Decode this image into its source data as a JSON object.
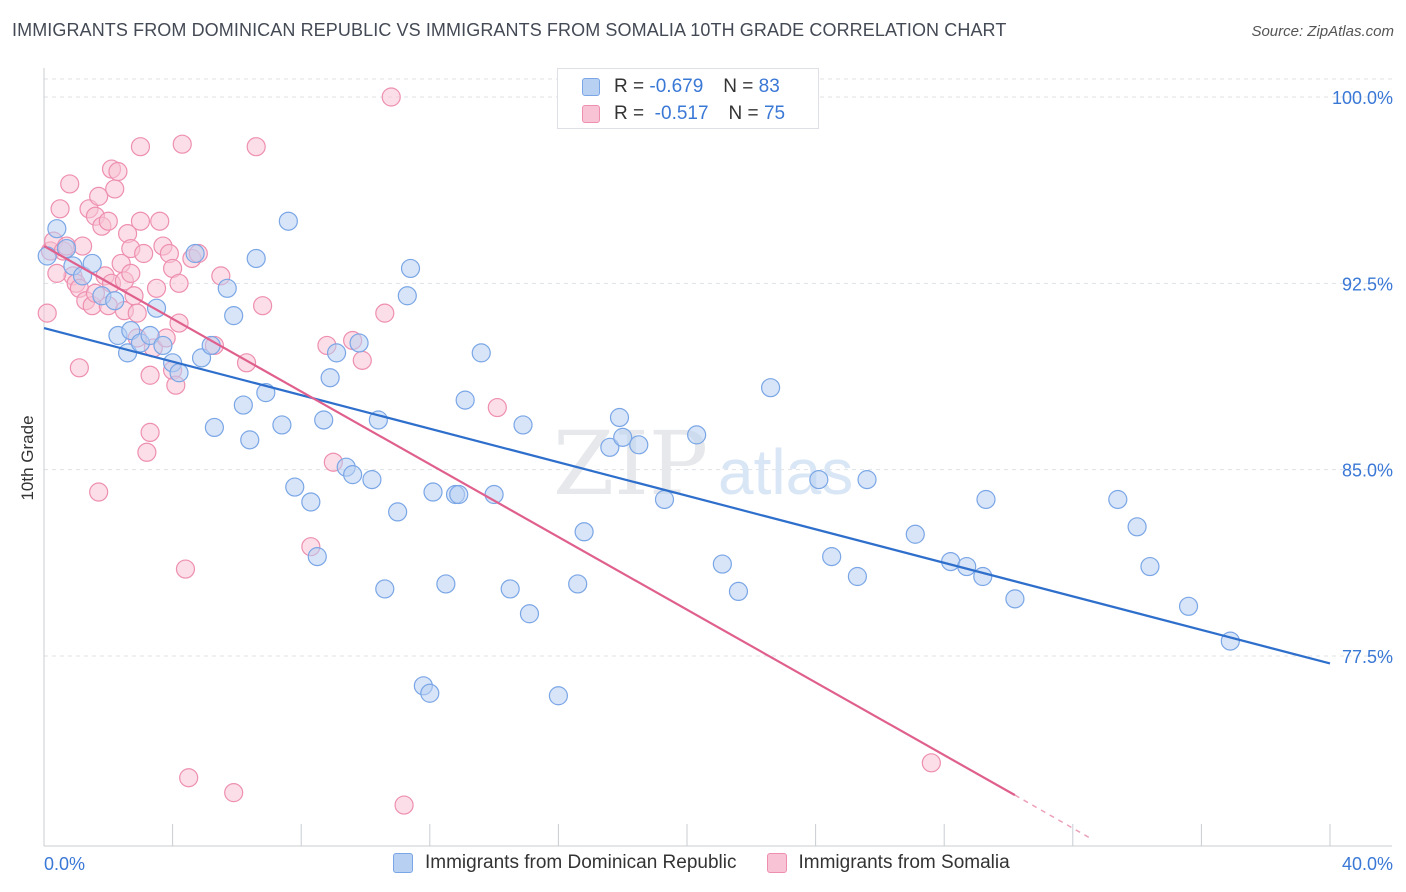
{
  "header": {
    "title": "IMMIGRANTS FROM DOMINICAN REPUBLIC VS IMMIGRANTS FROM SOMALIA 10TH GRADE CORRELATION CHART",
    "source": "Source: ZipAtlas.com"
  },
  "stats": [
    {
      "r_label": "R =",
      "r_value": "-0.679",
      "n_label": "N =",
      "n_value": "83"
    },
    {
      "r_label": "R =",
      "r_value": "-0.517",
      "n_label": "N =",
      "n_value": "75"
    }
  ],
  "watermark": {
    "zip": "ZIP",
    "atlas": "atlas"
  },
  "colors": {
    "blue_fill": "#b8d0f2",
    "blue_stroke": "#7aa6e6",
    "blue_line": "#2f6fcc",
    "pink_fill": "#f8c3d4",
    "pink_stroke": "#ee8fb0",
    "pink_line": "#e0608d",
    "axis_text": "#3a78d6",
    "grid": "#dde1e6"
  },
  "chart_data": {
    "type": "scatter",
    "xlabel": "",
    "ylabel": "10th Grade",
    "xlim": [
      0,
      40
    ],
    "ylim": [
      70.5,
      101
    ],
    "x_tick_labels": [
      "0.0%",
      "40.0%"
    ],
    "y_ticks": [
      77.5,
      85.0,
      92.5,
      100.0
    ],
    "y_tick_labels": [
      "77.5%",
      "85.0%",
      "92.5%",
      "100.0%"
    ],
    "grid": "horizontal dashed",
    "legend_position": "top-center and bottom",
    "series": [
      {
        "name": "Immigrants from Dominican Republic",
        "color": "#7aa6e6",
        "trend": {
          "x": [
            0,
            40
          ],
          "y": [
            90.7,
            77.2
          ]
        },
        "points": [
          [
            0.1,
            93.6
          ],
          [
            0.4,
            94.7
          ],
          [
            0.7,
            93.9
          ],
          [
            0.9,
            93.2
          ],
          [
            1.2,
            92.8
          ],
          [
            1.5,
            93.3
          ],
          [
            1.8,
            92.0
          ],
          [
            2.2,
            91.8
          ],
          [
            2.3,
            90.4
          ],
          [
            2.6,
            89.7
          ],
          [
            2.7,
            90.6
          ],
          [
            3.0,
            90.1
          ],
          [
            3.3,
            90.4
          ],
          [
            3.5,
            91.5
          ],
          [
            3.7,
            90.0
          ],
          [
            4.0,
            89.3
          ],
          [
            4.2,
            88.9
          ],
          [
            4.7,
            93.7
          ],
          [
            4.9,
            89.5
          ],
          [
            5.2,
            90.0
          ],
          [
            5.3,
            86.7
          ],
          [
            5.7,
            92.3
          ],
          [
            5.9,
            91.2
          ],
          [
            6.2,
            87.6
          ],
          [
            6.4,
            86.2
          ],
          [
            6.6,
            93.5
          ],
          [
            6.9,
            88.1
          ],
          [
            7.4,
            86.8
          ],
          [
            7.6,
            95.0
          ],
          [
            7.8,
            84.3
          ],
          [
            8.3,
            83.7
          ],
          [
            8.5,
            81.5
          ],
          [
            8.7,
            87.0
          ],
          [
            8.9,
            88.7
          ],
          [
            9.1,
            89.7
          ],
          [
            9.4,
            85.1
          ],
          [
            9.6,
            84.8
          ],
          [
            9.8,
            90.1
          ],
          [
            10.2,
            84.6
          ],
          [
            10.4,
            87.0
          ],
          [
            10.6,
            80.2
          ],
          [
            11.0,
            83.3
          ],
          [
            11.3,
            92.0
          ],
          [
            11.4,
            93.1
          ],
          [
            11.8,
            76.3
          ],
          [
            12.0,
            76.0
          ],
          [
            12.1,
            84.1
          ],
          [
            12.5,
            80.4
          ],
          [
            12.8,
            84.0
          ],
          [
            12.9,
            84.0
          ],
          [
            13.1,
            87.8
          ],
          [
            13.6,
            89.7
          ],
          [
            14.0,
            84.0
          ],
          [
            14.5,
            80.2
          ],
          [
            14.9,
            86.8
          ],
          [
            15.1,
            79.2
          ],
          [
            16.0,
            75.9
          ],
          [
            16.6,
            80.4
          ],
          [
            16.8,
            82.5
          ],
          [
            17.6,
            85.9
          ],
          [
            17.9,
            87.1
          ],
          [
            18.0,
            86.3
          ],
          [
            18.5,
            86.0
          ],
          [
            19.3,
            83.8
          ],
          [
            20.3,
            86.4
          ],
          [
            21.1,
            81.2
          ],
          [
            21.6,
            80.1
          ],
          [
            22.6,
            88.3
          ],
          [
            24.1,
            84.6
          ],
          [
            24.5,
            81.5
          ],
          [
            25.3,
            80.7
          ],
          [
            25.6,
            84.6
          ],
          [
            27.1,
            82.4
          ],
          [
            28.2,
            81.3
          ],
          [
            28.7,
            81.1
          ],
          [
            29.2,
            80.7
          ],
          [
            29.3,
            83.8
          ],
          [
            30.2,
            79.8
          ],
          [
            33.4,
            83.8
          ],
          [
            34.0,
            82.7
          ],
          [
            34.4,
            81.1
          ],
          [
            35.6,
            79.5
          ],
          [
            36.9,
            78.1
          ]
        ]
      },
      {
        "name": "Immigrants from Somalia",
        "color": "#ee8fb0",
        "trend": {
          "x": [
            0,
            30.2
          ],
          "y": [
            94.0,
            71.9
          ]
        },
        "trend_dashed": {
          "x": [
            30.2,
            32.5
          ],
          "y": [
            71.9,
            70.2
          ]
        },
        "points": [
          [
            0.1,
            91.3
          ],
          [
            0.2,
            93.8
          ],
          [
            0.3,
            94.2
          ],
          [
            0.5,
            95.5
          ],
          [
            0.6,
            93.8
          ],
          [
            0.7,
            94.0
          ],
          [
            0.8,
            96.5
          ],
          [
            0.9,
            92.8
          ],
          [
            1.0,
            92.5
          ],
          [
            1.1,
            92.3
          ],
          [
            1.1,
            89.1
          ],
          [
            1.2,
            94.0
          ],
          [
            1.3,
            91.8
          ],
          [
            1.4,
            95.5
          ],
          [
            1.5,
            91.6
          ],
          [
            1.6,
            92.1
          ],
          [
            1.6,
            95.2
          ],
          [
            1.7,
            96.0
          ],
          [
            1.7,
            84.1
          ],
          [
            1.8,
            94.8
          ],
          [
            1.9,
            92.8
          ],
          [
            2.0,
            91.6
          ],
          [
            2.0,
            95.0
          ],
          [
            2.1,
            97.1
          ],
          [
            2.1,
            92.5
          ],
          [
            2.2,
            96.3
          ],
          [
            2.3,
            97.0
          ],
          [
            2.4,
            93.3
          ],
          [
            2.5,
            92.6
          ],
          [
            2.5,
            91.4
          ],
          [
            2.6,
            94.5
          ],
          [
            2.7,
            93.9
          ],
          [
            2.7,
            92.9
          ],
          [
            2.8,
            92.0
          ],
          [
            2.9,
            90.3
          ],
          [
            2.9,
            91.3
          ],
          [
            3.0,
            98.0
          ],
          [
            3.0,
            95.0
          ],
          [
            3.1,
            93.7
          ],
          [
            3.2,
            85.7
          ],
          [
            3.3,
            86.5
          ],
          [
            3.3,
            88.8
          ],
          [
            3.4,
            89.9
          ],
          [
            3.5,
            92.3
          ],
          [
            3.6,
            95.0
          ],
          [
            3.7,
            94.0
          ],
          [
            3.8,
            90.3
          ],
          [
            3.9,
            93.7
          ],
          [
            4.0,
            89.0
          ],
          [
            4.0,
            93.1
          ],
          [
            4.1,
            88.4
          ],
          [
            4.2,
            92.5
          ],
          [
            4.2,
            90.9
          ],
          [
            4.3,
            98.1
          ],
          [
            4.4,
            81.0
          ],
          [
            4.5,
            72.6
          ],
          [
            4.6,
            93.5
          ],
          [
            4.8,
            93.7
          ],
          [
            5.3,
            90.0
          ],
          [
            5.5,
            92.8
          ],
          [
            5.9,
            72.0
          ],
          [
            6.3,
            89.3
          ],
          [
            6.6,
            98.0
          ],
          [
            6.8,
            91.6
          ],
          [
            8.3,
            81.9
          ],
          [
            8.8,
            90.0
          ],
          [
            9.0,
            85.3
          ],
          [
            9.6,
            90.2
          ],
          [
            9.9,
            89.4
          ],
          [
            10.6,
            91.3
          ],
          [
            10.8,
            100.0
          ],
          [
            11.2,
            71.5
          ],
          [
            14.1,
            87.5
          ],
          [
            27.6,
            73.2
          ],
          [
            0.4,
            92.9
          ]
        ]
      }
    ]
  },
  "bottom_legend": [
    {
      "label": "Immigrants from Dominican Republic"
    },
    {
      "label": "Immigrants from Somalia"
    }
  ]
}
